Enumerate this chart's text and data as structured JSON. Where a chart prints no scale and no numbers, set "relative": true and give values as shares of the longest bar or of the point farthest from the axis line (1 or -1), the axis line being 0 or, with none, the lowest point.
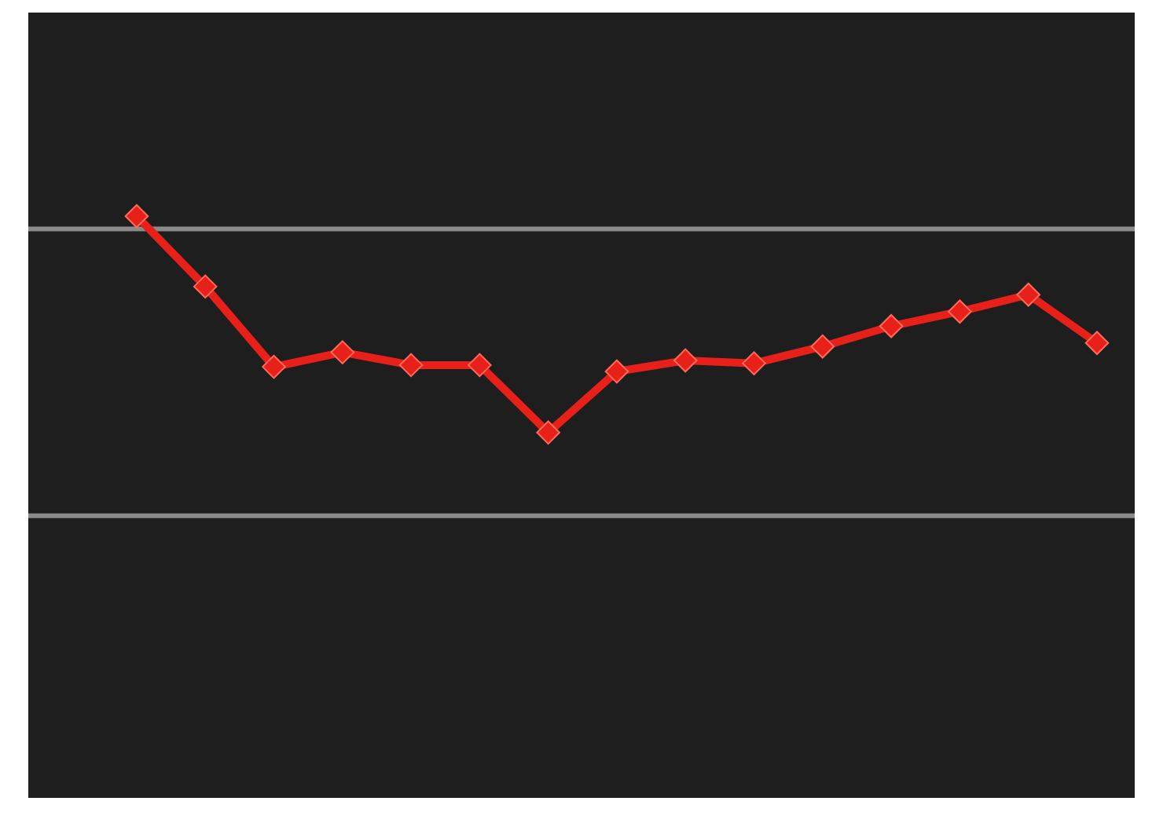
{
  "chart_data": {
    "type": "line",
    "relative": true,
    "categories": [
      null,
      null,
      null,
      null,
      null,
      null,
      null,
      null,
      null,
      null,
      null,
      null,
      null,
      null,
      null
    ],
    "series": [
      {
        "color": "#e8201a",
        "values": [
          1,
          0.879,
          0.741,
          0.766,
          0.744,
          0.744,
          0.628,
          0.733,
          0.752,
          0.747,
          0.776,
          0.811,
          0.836,
          0.865,
          0.782
        ]
      }
    ],
    "ref_lines": [
      {
        "axis": "y",
        "value": 0.978,
        "color": "#8a8a8a"
      },
      {
        "axis": "y",
        "value": 0.485,
        "color": "#8a8a8a"
      }
    ],
    "marker": "diamond",
    "line_style": "solid"
  }
}
